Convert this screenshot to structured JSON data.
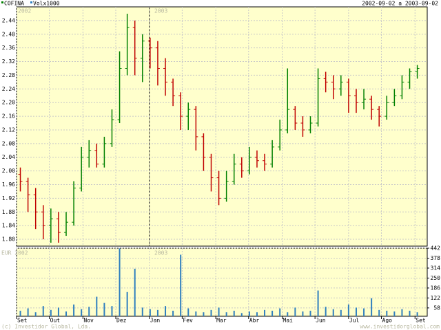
{
  "chart_data": {
    "type": "ohlc",
    "legend": [
      "COFINA",
      "Volx1000"
    ],
    "period": "2002-09-02 a 2003-09-02",
    "year_labels": [
      "2002",
      "2003"
    ],
    "volume_label": "EUR 2002",
    "volume_year_label": "2003",
    "footer_left": "(c) Investidor Global, Lda.",
    "footer_right": "www.investidorglobal.com",
    "up_color": "#008000",
    "down_color": "#c00000",
    "volume_color": "#2f7fbf",
    "open": [
      1.99,
      1.97,
      1.93,
      1.88,
      1.84,
      1.86,
      1.82,
      1.85,
      1.95,
      2.04,
      2.06,
      2.02,
      2.08,
      2.15,
      2.3,
      2.42,
      2.33,
      2.38,
      2.36,
      2.3,
      2.26,
      2.22,
      2.16,
      2.18,
      2.1,
      2.04,
      1.98,
      1.92,
      1.97,
      2.02,
      2.0,
      2.04,
      2.03,
      2.02,
      2.07,
      2.12,
      2.18,
      2.14,
      2.12,
      2.14,
      2.27,
      2.26,
      2.24,
      2.26,
      2.22,
      2.2,
      2.21,
      2.18,
      2.16,
      2.2,
      2.22,
      2.26,
      2.29
    ],
    "high": [
      2.01,
      1.98,
      1.95,
      1.9,
      1.89,
      1.88,
      1.88,
      1.97,
      2.07,
      2.09,
      2.08,
      2.1,
      2.18,
      2.35,
      2.46,
      2.44,
      2.4,
      2.39,
      2.38,
      2.33,
      2.27,
      2.23,
      2.2,
      2.19,
      2.11,
      2.05,
      2.0,
      2.0,
      2.05,
      2.04,
      2.07,
      2.06,
      2.05,
      2.09,
      2.15,
      2.3,
      2.19,
      2.16,
      2.16,
      2.3,
      2.29,
      2.28,
      2.28,
      2.27,
      2.24,
      2.24,
      2.22,
      2.19,
      2.22,
      2.24,
      2.28,
      2.3,
      2.31
    ],
    "low": [
      1.94,
      1.88,
      1.83,
      1.8,
      1.79,
      1.79,
      1.81,
      1.84,
      1.94,
      2.01,
      2.01,
      2.01,
      2.07,
      2.14,
      2.28,
      2.28,
      2.26,
      2.3,
      2.25,
      2.22,
      2.19,
      2.12,
      2.12,
      2.06,
      2.0,
      1.94,
      1.9,
      1.91,
      1.96,
      1.98,
      1.99,
      2.01,
      2.0,
      2.01,
      2.06,
      2.11,
      2.12,
      2.1,
      2.11,
      2.13,
      2.23,
      2.21,
      2.22,
      2.17,
      2.17,
      2.18,
      2.15,
      2.13,
      2.15,
      2.19,
      2.21,
      2.24,
      2.27
    ],
    "close": [
      1.97,
      1.93,
      1.88,
      1.84,
      1.86,
      1.82,
      1.85,
      1.95,
      2.04,
      2.06,
      2.02,
      2.08,
      2.15,
      2.3,
      2.42,
      2.33,
      2.38,
      2.36,
      2.3,
      2.26,
      2.22,
      2.16,
      2.18,
      2.1,
      2.04,
      1.98,
      1.92,
      1.97,
      2.02,
      2.0,
      2.04,
      2.03,
      2.02,
      2.07,
      2.12,
      2.18,
      2.14,
      2.12,
      2.14,
      2.27,
      2.26,
      2.24,
      2.26,
      2.22,
      2.2,
      2.21,
      2.18,
      2.16,
      2.2,
      2.22,
      2.26,
      2.29,
      2.3
    ],
    "volume": [
      40,
      55,
      30,
      70,
      45,
      60,
      35,
      80,
      50,
      65,
      130,
      90,
      70,
      440,
      160,
      310,
      60,
      50,
      45,
      70,
      40,
      400,
      55,
      35,
      30,
      45,
      60,
      30,
      40,
      25,
      35,
      30,
      45,
      40,
      55,
      30,
      60,
      35,
      40,
      170,
      65,
      50,
      45,
      80,
      60,
      55,
      120,
      45,
      40,
      35,
      50,
      40,
      30
    ],
    "xlim": [
      0,
      53.8
    ],
    "xticks": [
      {
        "value": 0,
        "label": "Set"
      },
      {
        "value": 4.3,
        "label": "Out"
      },
      {
        "value": 8.7,
        "label": "Nov"
      },
      {
        "value": 13,
        "label": "Dez"
      },
      {
        "value": 17.4,
        "label": "Jan"
      },
      {
        "value": 21.7,
        "label": "Fev"
      },
      {
        "value": 26.1,
        "label": "Mar"
      },
      {
        "value": 30.4,
        "label": "Abr"
      },
      {
        "value": 34.8,
        "label": "Mai"
      },
      {
        "value": 39.1,
        "label": "Jun"
      },
      {
        "value": 43.5,
        "label": "Jul"
      },
      {
        "value": 47.8,
        "label": "Ago"
      },
      {
        "value": 52.2,
        "label": "Set"
      }
    ],
    "ylim": [
      1.78,
      2.48
    ],
    "yticks": [
      {
        "value": 1.8,
        "label": "1.80"
      },
      1.84,
      1.88,
      1.92,
      1.96,
      {
        "value": 2,
        "label": "2.00"
      },
      2.04,
      2.08,
      2.12,
      2.16,
      {
        "value": 2.2,
        "label": "2.20"
      },
      2.24,
      2.28,
      2.32,
      2.36,
      {
        "value": 2.4,
        "label": "2.40"
      },
      2.44
    ],
    "y2lim": [
      0,
      442
    ],
    "y2ticks": [
      58,
      122,
      186,
      250,
      314,
      378,
      442
    ],
    "grid": true
  }
}
